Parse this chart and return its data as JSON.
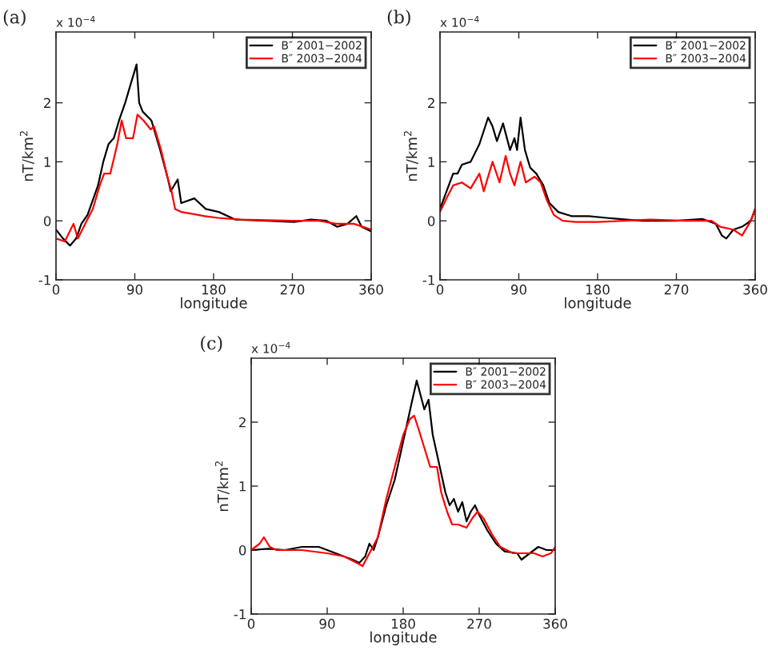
{
  "chart_data": [
    {
      "type": "line",
      "title": "(a)",
      "xlabel": "longitude",
      "ylabel": "nT/km$^{2}$",
      "annotations": [
        "x 10$^{−4}$"
      ],
      "xlim": [
        0,
        360
      ],
      "xticks": [
        0,
        90,
        180,
        270,
        360
      ],
      "ylim": [
        -1,
        3.2
      ],
      "yticks": [
        -1,
        0,
        1,
        2
      ],
      "legend": "top right",
      "grid": false,
      "series": [
        {
          "name": "B″ 2001−2002",
          "color": "#000000",
          "x": [
            0,
            8,
            16,
            23,
            29,
            36,
            42,
            48,
            54,
            60,
            66,
            72,
            79,
            85,
            92,
            95,
            99,
            109,
            119,
            128,
            131,
            139,
            143,
            158,
            171,
            186,
            205,
            241,
            272,
            291,
            309,
            321,
            333,
            343,
            349,
            360
          ],
          "values": [
            -0.15,
            -0.3,
            -0.42,
            -0.3,
            -0.05,
            0.1,
            0.35,
            0.6,
            1.0,
            1.3,
            1.4,
            1.7,
            2.0,
            2.3,
            2.65,
            2.0,
            1.85,
            1.7,
            1.2,
            0.7,
            0.5,
            0.7,
            0.3,
            0.38,
            0.2,
            0.15,
            0.02,
            0.0,
            -0.02,
            0.02,
            0.0,
            -0.1,
            -0.05,
            0.08,
            -0.1,
            -0.18
          ]
        },
        {
          "name": "B″ 2003−2004",
          "color": "#ff0000",
          "x": [
            0,
            10,
            20,
            25,
            35,
            42,
            50,
            55,
            62,
            70,
            75,
            80,
            88,
            93,
            100,
            108,
            112,
            120,
            128,
            132,
            136,
            143,
            155,
            170,
            185,
            210,
            270,
            300,
            320,
            340,
            360
          ],
          "values": [
            -0.3,
            -0.35,
            -0.05,
            -0.3,
            0.0,
            0.2,
            0.6,
            0.8,
            0.8,
            1.3,
            1.7,
            1.4,
            1.4,
            1.8,
            1.7,
            1.55,
            1.6,
            1.2,
            0.7,
            0.5,
            0.2,
            0.15,
            0.12,
            0.08,
            0.05,
            0.02,
            0.0,
            0.0,
            -0.05,
            -0.05,
            -0.15
          ]
        }
      ]
    },
    {
      "type": "line",
      "title": "(b)",
      "xlabel": "longitude",
      "ylabel": "nT/km$^{2}$",
      "annotations": [
        "x 10$^{−4}$"
      ],
      "xlim": [
        0,
        360
      ],
      "xticks": [
        0,
        90,
        180,
        270,
        360
      ],
      "ylim": [
        -1,
        3.2
      ],
      "yticks": [
        -1,
        0,
        1,
        2
      ],
      "legend": "top right",
      "grid": false,
      "series": [
        {
          "name": "B″ 2001−2002",
          "color": "#000000",
          "x": [
            0,
            5,
            15,
            20,
            25,
            35,
            45,
            55,
            60,
            65,
            72,
            80,
            85,
            88,
            92,
            97,
            103,
            110,
            118,
            125,
            135,
            150,
            170,
            190,
            230,
            270,
            300,
            315,
            322,
            327,
            335,
            345,
            355,
            360
          ],
          "values": [
            0.2,
            0.4,
            0.8,
            0.8,
            0.95,
            1.0,
            1.3,
            1.75,
            1.6,
            1.35,
            1.65,
            1.2,
            1.4,
            1.2,
            1.75,
            1.2,
            0.9,
            0.8,
            0.6,
            0.3,
            0.15,
            0.08,
            0.08,
            0.05,
            0.0,
            0.0,
            0.03,
            -0.05,
            -0.25,
            -0.3,
            -0.15,
            -0.1,
            0.0,
            0.2
          ]
        },
        {
          "name": "B″ 2003−2004",
          "color": "#ff0000",
          "x": [
            0,
            8,
            15,
            25,
            35,
            45,
            50,
            60,
            68,
            75,
            80,
            85,
            92,
            98,
            108,
            115,
            122,
            130,
            140,
            155,
            180,
            210,
            240,
            280,
            310,
            320,
            335,
            345,
            355,
            360
          ],
          "values": [
            0.15,
            0.4,
            0.6,
            0.65,
            0.55,
            0.8,
            0.5,
            1.0,
            0.65,
            1.1,
            0.8,
            0.6,
            1.0,
            0.65,
            0.75,
            0.65,
            0.35,
            0.1,
            0.0,
            -0.02,
            -0.02,
            0.0,
            0.02,
            0.0,
            0.0,
            -0.1,
            -0.15,
            -0.25,
            0.0,
            0.2
          ]
        }
      ]
    },
    {
      "type": "line",
      "title": "(c)",
      "xlabel": "longitude",
      "ylabel": "nT/km$^{2}$",
      "annotations": [
        "x 10$^{−4}$"
      ],
      "xlim": [
        0,
        360
      ],
      "xticks": [
        0,
        90,
        180,
        270,
        360
      ],
      "ylim": [
        -1,
        3
      ],
      "yticks": [
        -1,
        0,
        1,
        2
      ],
      "legend": "top right",
      "grid": false,
      "series": [
        {
          "name": "B″ 2001−2002",
          "color": "#000000",
          "x": [
            0,
            20,
            40,
            60,
            80,
            100,
            120,
            128,
            135,
            140,
            145,
            150,
            160,
            170,
            180,
            185,
            190,
            196,
            205,
            210,
            215,
            220,
            225,
            230,
            235,
            240,
            245,
            250,
            255,
            260,
            265,
            270,
            280,
            290,
            300,
            315,
            320,
            330,
            340,
            350,
            360
          ],
          "values": [
            0.0,
            0.02,
            0.0,
            0.05,
            0.05,
            -0.05,
            -0.15,
            -0.2,
            -0.1,
            0.1,
            0.0,
            0.2,
            0.7,
            1.1,
            1.7,
            2.0,
            2.3,
            2.65,
            2.2,
            2.35,
            1.8,
            1.5,
            1.2,
            0.9,
            0.7,
            0.8,
            0.6,
            0.75,
            0.45,
            0.6,
            0.7,
            0.55,
            0.3,
            0.1,
            -0.02,
            -0.05,
            -0.15,
            -0.05,
            0.05,
            0.0,
            0.0
          ]
        },
        {
          "name": "B″ 2003−2004",
          "color": "#ff0000",
          "x": [
            0,
            10,
            15,
            22,
            30,
            60,
            90,
            110,
            125,
            132,
            140,
            150,
            160,
            170,
            180,
            188,
            193,
            198,
            205,
            212,
            220,
            225,
            232,
            238,
            245,
            255,
            262,
            268,
            275,
            285,
            295,
            310,
            325,
            335,
            345,
            355,
            360
          ],
          "values": [
            0.0,
            0.1,
            0.2,
            0.05,
            0.0,
            0.0,
            -0.05,
            -0.1,
            -0.2,
            -0.25,
            -0.05,
            0.2,
            0.8,
            1.3,
            1.8,
            2.05,
            2.1,
            1.9,
            1.6,
            1.3,
            1.3,
            0.9,
            0.6,
            0.4,
            0.4,
            0.35,
            0.5,
            0.6,
            0.5,
            0.25,
            0.05,
            -0.05,
            -0.05,
            -0.05,
            -0.1,
            -0.05,
            0.05
          ]
        }
      ]
    }
  ]
}
